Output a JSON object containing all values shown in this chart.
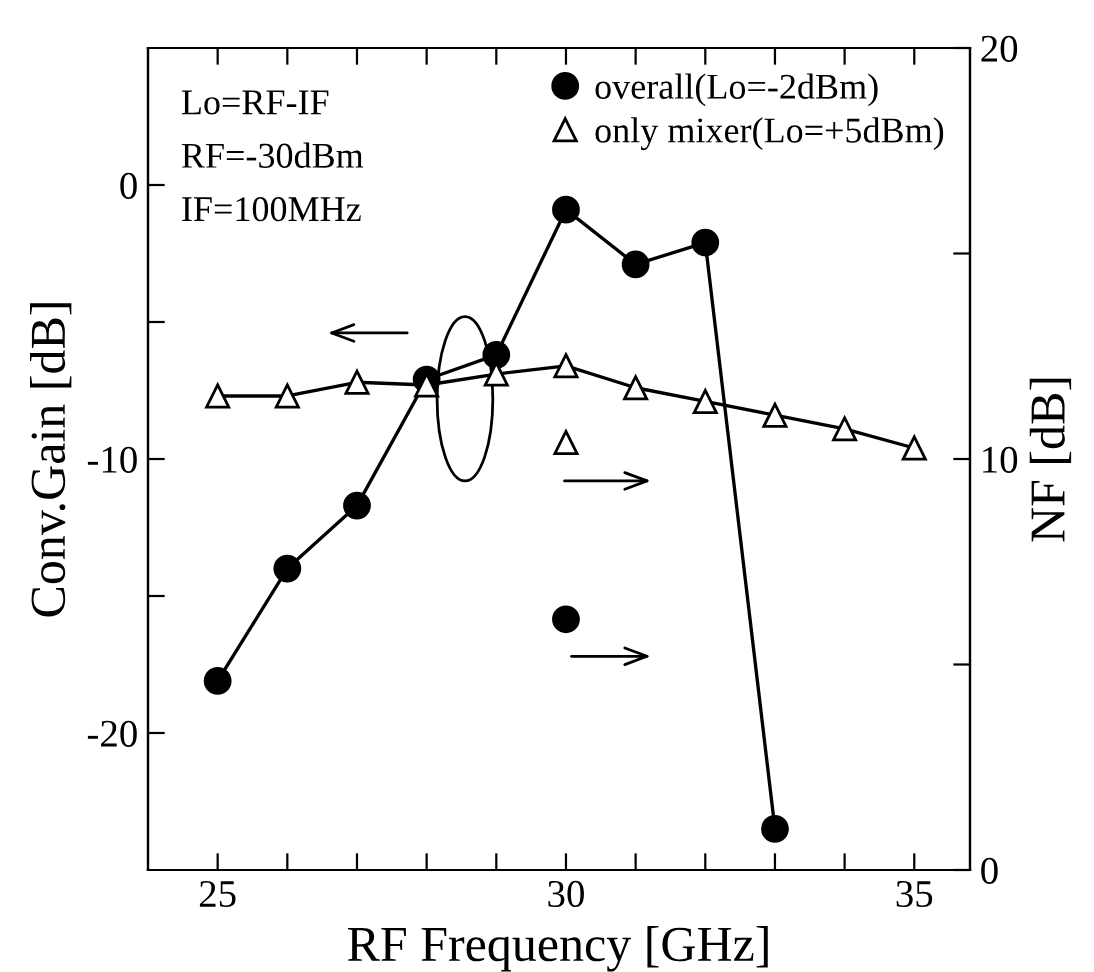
{
  "chart_data": {
    "type": "line",
    "xlabel": "RF Frequency [GHz]",
    "ylabel": "Conv.Gain [dB]",
    "y2label": "NF [dB]",
    "annotations": [
      "Lo=RF-IF",
      "RF=-30dBm",
      "IF=100MHz"
    ],
    "xlim": [
      24,
      35.8
    ],
    "xticks": [
      25,
      {
        "value": 26,
        "label": null
      },
      {
        "value": 27,
        "label": null
      },
      {
        "value": 28,
        "label": null
      },
      {
        "value": 29,
        "label": null
      },
      30,
      {
        "value": 31,
        "label": null
      },
      {
        "value": 32,
        "label": null
      },
      {
        "value": 33,
        "label": null
      },
      {
        "value": 34,
        "label": null
      },
      35
    ],
    "ylim": [
      -25,
      5
    ],
    "yticks": [
      -20,
      {
        "value": -15,
        "label": null
      },
      -10,
      {
        "value": -5,
        "label": null
      },
      0
    ],
    "y2lim": [
      0,
      20
    ],
    "y2ticks": [
      0,
      {
        "value": 5,
        "label": null
      },
      10,
      {
        "value": 15,
        "label": null
      },
      20
    ],
    "legend": "top right",
    "grid": false,
    "line_style": "solid",
    "series": [
      {
        "name": "overall(Lo=-2dBm)",
        "color": "#000000",
        "marker": "circle",
        "x": [
          25,
          26,
          27,
          28,
          29,
          30,
          31,
          32,
          33
        ],
        "values": [
          -18.1,
          -14.0,
          -11.7,
          -7.1,
          -6.2,
          -0.9,
          -2.9,
          -2.1,
          -23.5
        ]
      },
      {
        "name": "only mixer(Lo=+5dBm)",
        "color": "#000000",
        "marker": "triangle",
        "x": [
          25,
          26,
          27,
          28,
          29,
          30,
          31,
          32,
          33,
          34,
          35
        ],
        "values": [
          -7.7,
          -7.7,
          -7.2,
          -7.3,
          -6.9,
          -6.6,
          -7.4,
          -7.9,
          -8.4,
          -8.9,
          -9.6
        ]
      },
      {
        "type": "scatter",
        "axis": "y2",
        "color": "#000000",
        "marker": "circle",
        "x": [
          30
        ],
        "values": [
          6.1
        ]
      },
      {
        "type": "scatter",
        "axis": "y2",
        "color": "#000000",
        "marker": "triangle",
        "x": [
          30
        ],
        "values": [
          10.4
        ]
      }
    ]
  }
}
